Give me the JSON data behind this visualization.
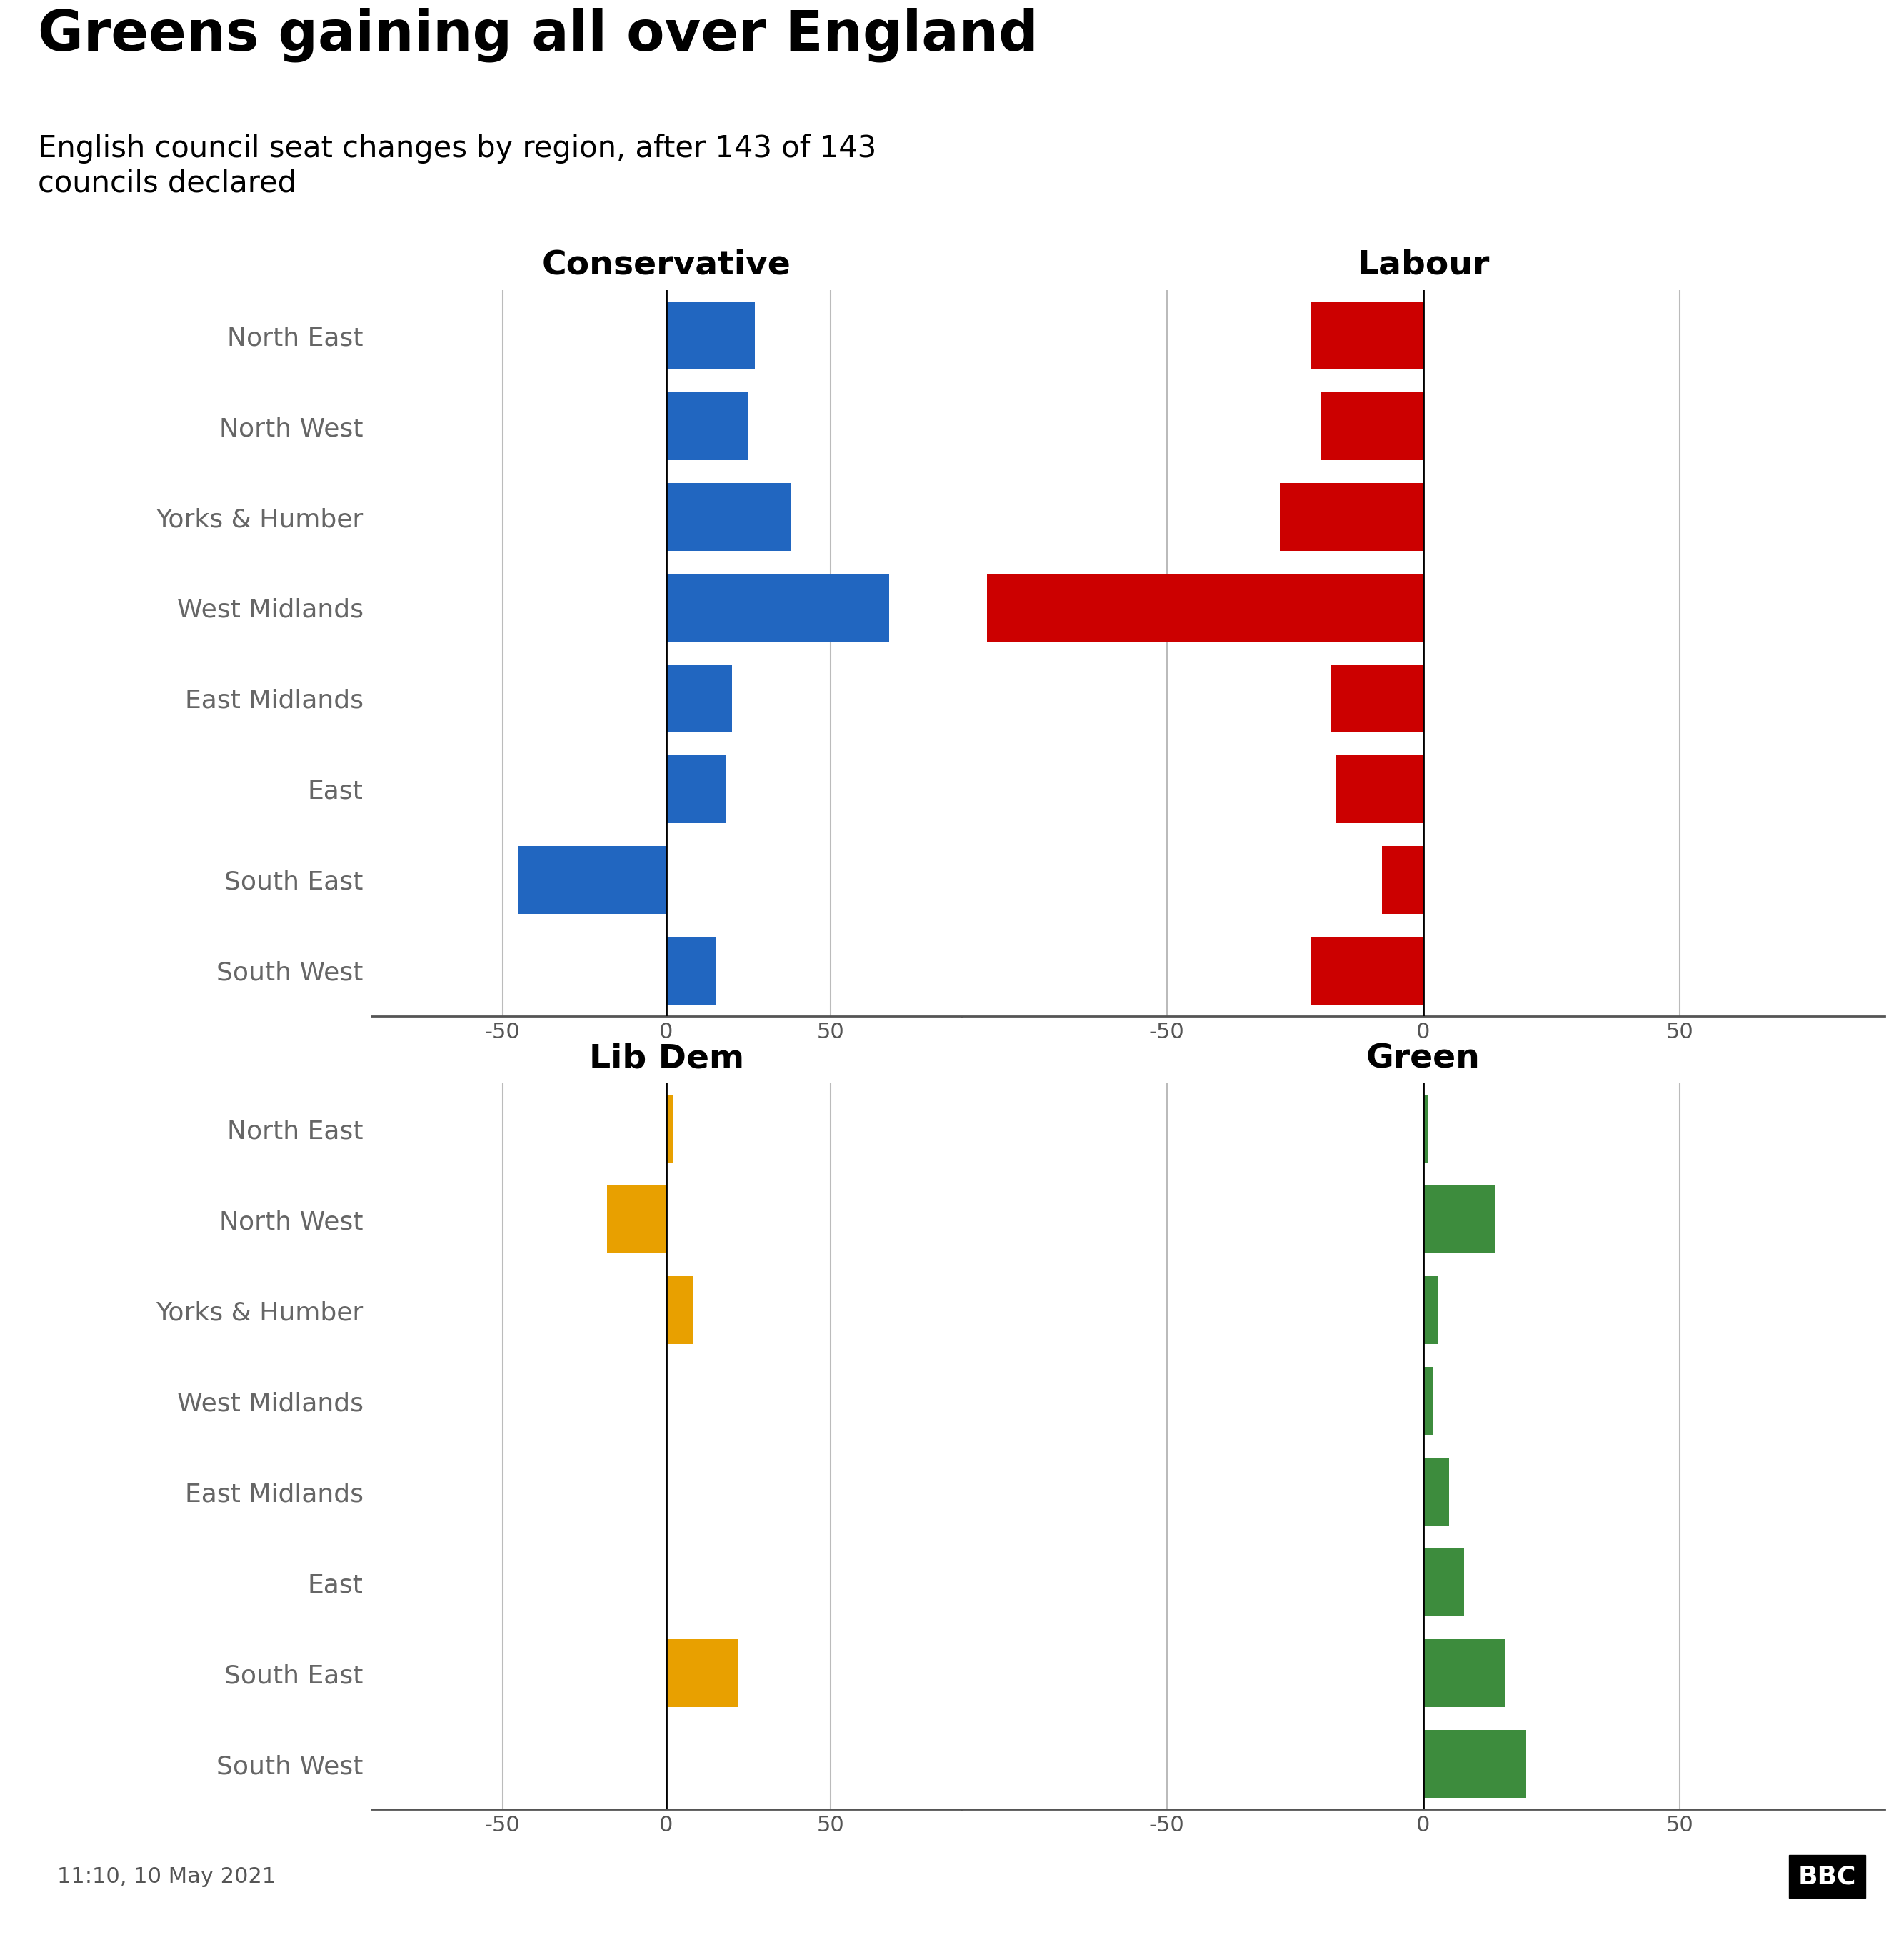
{
  "title": "Greens gaining all over England",
  "subtitle": "English council seat changes by region, after 143 of 143\ncouncils declared",
  "timestamp": "11:10, 10 May 2021",
  "regions": [
    "North East",
    "North West",
    "Yorks & Humber",
    "West Midlands",
    "East Midlands",
    "East",
    "South East",
    "South West"
  ],
  "conservative": [
    27,
    25,
    38,
    68,
    20,
    18,
    -45,
    15
  ],
  "labour": [
    -22,
    -20,
    -28,
    -85,
    -18,
    -17,
    -8,
    -22
  ],
  "libdem": [
    2,
    -18,
    8,
    0,
    0,
    0,
    22,
    0
  ],
  "green": [
    1,
    14,
    3,
    2,
    5,
    8,
    16,
    20
  ],
  "colors": {
    "conservative": "#2166C0",
    "labour": "#CC0000",
    "libdem": "#E8A000",
    "green": "#3D8C3D",
    "label_color": "#666666",
    "gridline_color": "#bbbbbb",
    "axis_color": "#888888"
  },
  "party_labels": [
    "Conservative",
    "Labour",
    "Lib Dem",
    "Green"
  ],
  "xlim": [
    -90,
    90
  ],
  "xticks": [
    -50,
    0,
    50
  ],
  "xtick_labels": [
    "-50",
    "0",
    "50"
  ],
  "bar_height": 0.75,
  "background_color": "#ffffff"
}
